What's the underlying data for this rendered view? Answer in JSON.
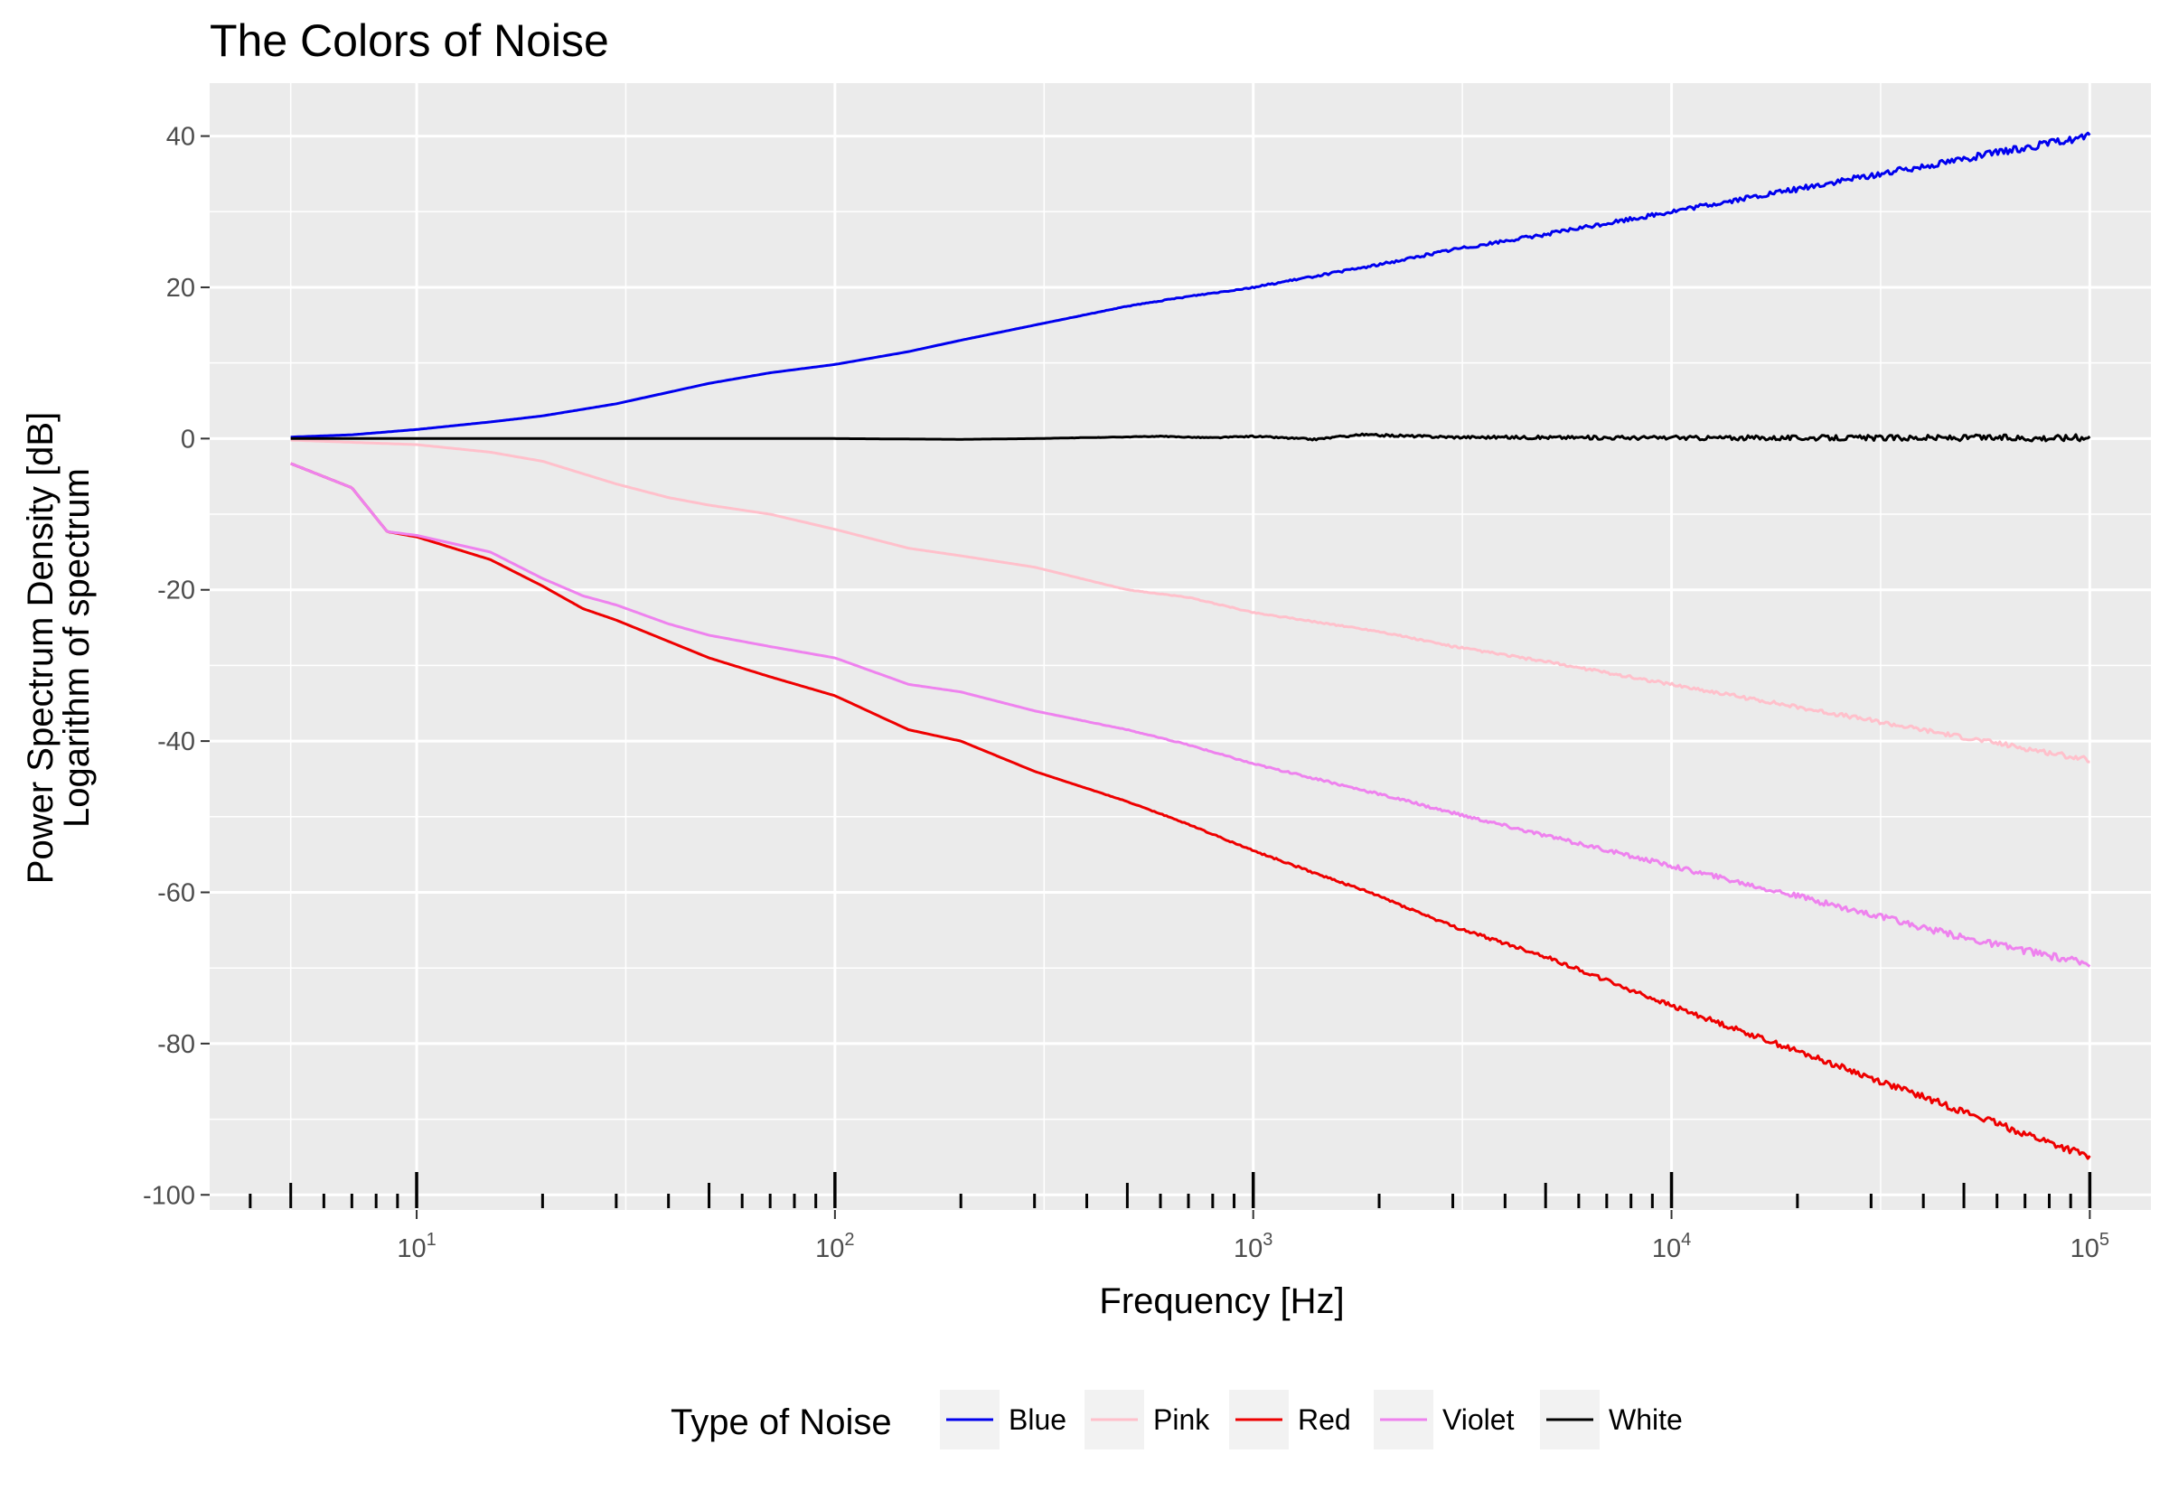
{
  "chart_data": {
    "type": "line",
    "title": "The Colors of Noise",
    "xlabel": "Frequency [Hz]",
    "ylabel": [
      "Power Spectrum Density [dB]",
      "Logarithm of spectrum"
    ],
    "x_scale": "log10",
    "xlim": [
      3.2,
      140000
    ],
    "ylim": [
      -102,
      47
    ],
    "x_ticks": [
      {
        "base": "10",
        "exp": "1",
        "value": 10
      },
      {
        "base": "10",
        "exp": "2",
        "value": 100
      },
      {
        "base": "10",
        "exp": "3",
        "value": 1000
      },
      {
        "base": "10",
        "exp": "4",
        "value": 10000
      },
      {
        "base": "10",
        "exp": "5",
        "value": 100000
      }
    ],
    "y_ticks": [
      {
        "label": "40",
        "value": 40
      },
      {
        "label": "20",
        "value": 20
      },
      {
        "label": "0",
        "value": 0
      },
      {
        "label": "-20",
        "value": -20
      },
      {
        "label": "-40",
        "value": -40
      },
      {
        "label": "-60",
        "value": -60
      },
      {
        "label": "-80",
        "value": -80
      },
      {
        "label": "-100",
        "value": -100
      }
    ],
    "grid": true,
    "rug_ticks": true,
    "legend": {
      "title": "Type of Noise",
      "placement": "bottom"
    },
    "series": [
      {
        "name": "Blue",
        "color": "#0000ee",
        "noise": 0.5,
        "points": [
          [
            5,
            0.2
          ],
          [
            7,
            0.5
          ],
          [
            10,
            1.2
          ],
          [
            15,
            2.2
          ],
          [
            20,
            3.0
          ],
          [
            30,
            4.6
          ],
          [
            50,
            7.3
          ],
          [
            70,
            8.7
          ],
          [
            100,
            9.8
          ],
          [
            150,
            11.5
          ],
          [
            200,
            13.0
          ],
          [
            300,
            15.0
          ],
          [
            500,
            17.5
          ],
          [
            700,
            18.8
          ],
          [
            1000,
            20.0
          ],
          [
            2000,
            23.0
          ],
          [
            3000,
            25.0
          ],
          [
            5000,
            27.0
          ],
          [
            10000,
            30.0
          ],
          [
            20000,
            33.0
          ],
          [
            50000,
            37.0
          ],
          [
            100000,
            40.0
          ]
        ]
      },
      {
        "name": "Pink",
        "color": "#ffc0cb",
        "noise": 0.35,
        "points": [
          [
            5,
            -0.2
          ],
          [
            10,
            -0.8
          ],
          [
            15,
            -1.8
          ],
          [
            20,
            -3.0
          ],
          [
            30,
            -6.0
          ],
          [
            40,
            -7.8
          ],
          [
            50,
            -8.8
          ],
          [
            70,
            -10.0
          ],
          [
            100,
            -12.0
          ],
          [
            150,
            -14.5
          ],
          [
            200,
            -15.5
          ],
          [
            300,
            -17.0
          ],
          [
            500,
            -20.0
          ],
          [
            700,
            -21.0
          ],
          [
            1000,
            -23.0
          ],
          [
            2000,
            -25.5
          ],
          [
            3000,
            -27.5
          ],
          [
            5000,
            -29.5
          ],
          [
            10000,
            -32.5
          ],
          [
            20000,
            -35.5
          ],
          [
            50000,
            -39.5
          ],
          [
            100000,
            -42.5
          ]
        ]
      },
      {
        "name": "Red",
        "color": "#ee0000",
        "noise": 0.5,
        "points": [
          [
            5,
            -3.3
          ],
          [
            7,
            -6.5
          ],
          [
            8.5,
            -12.3
          ],
          [
            10,
            -13.0
          ],
          [
            15,
            -16.0
          ],
          [
            20,
            -19.5
          ],
          [
            25,
            -22.5
          ],
          [
            30,
            -24.0
          ],
          [
            50,
            -29.0
          ],
          [
            70,
            -31.5
          ],
          [
            100,
            -34.0
          ],
          [
            150,
            -38.5
          ],
          [
            200,
            -40.0
          ],
          [
            300,
            -44.0
          ],
          [
            500,
            -48.0
          ],
          [
            700,
            -51.0
          ],
          [
            1000,
            -54.5
          ],
          [
            2000,
            -60.5
          ],
          [
            3000,
            -64.5
          ],
          [
            5000,
            -68.5
          ],
          [
            10000,
            -75.0
          ],
          [
            20000,
            -81.0
          ],
          [
            50000,
            -89.0
          ],
          [
            100000,
            -95.0
          ]
        ]
      },
      {
        "name": "Violet",
        "color": "#ee82ee",
        "noise": 0.5,
        "points": [
          [
            5,
            -3.3
          ],
          [
            7,
            -6.5
          ],
          [
            8.5,
            -12.3
          ],
          [
            10,
            -12.8
          ],
          [
            15,
            -15.0
          ],
          [
            20,
            -18.5
          ],
          [
            25,
            -20.8
          ],
          [
            30,
            -22.0
          ],
          [
            40,
            -24.5
          ],
          [
            50,
            -26.0
          ],
          [
            70,
            -27.5
          ],
          [
            100,
            -29.0
          ],
          [
            150,
            -32.5
          ],
          [
            200,
            -33.5
          ],
          [
            300,
            -36.0
          ],
          [
            500,
            -38.5
          ],
          [
            700,
            -40.5
          ],
          [
            1000,
            -43.0
          ],
          [
            2000,
            -47.0
          ],
          [
            3000,
            -49.5
          ],
          [
            5000,
            -52.5
          ],
          [
            10000,
            -56.5
          ],
          [
            20000,
            -60.5
          ],
          [
            50000,
            -66.0
          ],
          [
            100000,
            -69.5
          ]
        ]
      },
      {
        "name": "White",
        "color": "#000000",
        "noise": 0.45,
        "points": [
          [
            5,
            0.0
          ],
          [
            100,
            0.0
          ],
          [
            200,
            -0.1
          ],
          [
            300,
            0.0
          ],
          [
            600,
            0.3
          ],
          [
            800,
            0.1
          ],
          [
            1000,
            0.3
          ],
          [
            1400,
            -0.1
          ],
          [
            1800,
            0.5
          ],
          [
            3000,
            0.2
          ],
          [
            10000,
            0.1
          ],
          [
            100000,
            0.1
          ]
        ]
      }
    ]
  }
}
